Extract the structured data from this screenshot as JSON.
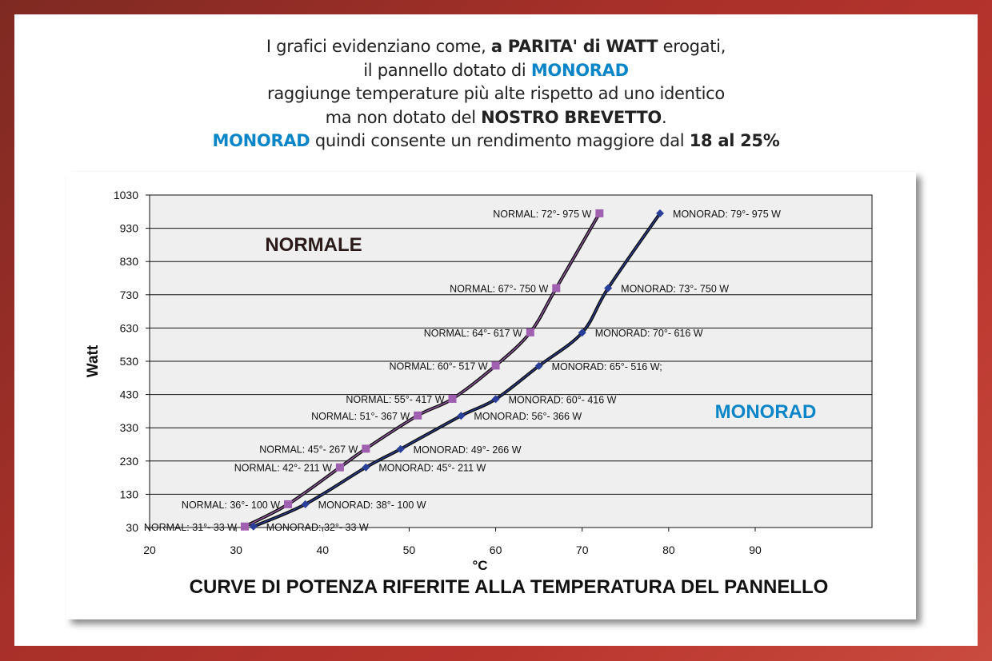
{
  "heading": {
    "line1_a": "I grafici evidenziano come, ",
    "line1_b": "a PARITA' di WATT",
    "line1_c": " erogati,",
    "line2_a": "il pannello dotato di ",
    "line2_b": "MONORAD",
    "line3": "raggiunge temperature più alte rispetto ad uno identico",
    "line4_a": "ma non dotato del ",
    "line4_b": "NOSTRO BREVETTO",
    "line4_c": ".",
    "line5_a": "MONORAD",
    "line5_b": " quindi consente un rendimento maggiore dal ",
    "line5_c": "18 al 25%"
  },
  "chart_data": {
    "type": "line",
    "title": "CURVE DI POTENZA RIFERITE ALLA TEMPERATURA DEL PANNELLO",
    "xlabel": "°C",
    "ylabel": "Watt",
    "xlim": [
      20,
      103.5
    ],
    "ylim": [
      30,
      1030
    ],
    "xticks": [
      20,
      30,
      40,
      50,
      60,
      70,
      80,
      90
    ],
    "yticks": [
      30,
      130,
      230,
      330,
      430,
      530,
      630,
      730,
      830,
      930,
      1030
    ],
    "grid": "horizontal",
    "annotations": {
      "normale": "NORMALE",
      "monorad": "MONORAD"
    },
    "series": [
      {
        "name": "NORMAL",
        "color": "#a060b0",
        "marker": "square",
        "points": [
          {
            "x": 31,
            "y": 33,
            "label": "NORMAL: 31°- 33 W"
          },
          {
            "x": 36,
            "y": 100,
            "label": "NORMAL: 36°- 100 W"
          },
          {
            "x": 42,
            "y": 211,
            "label": "NORMAL: 42°- 211 W"
          },
          {
            "x": 45,
            "y": 267,
            "label": "NORMAL: 45°- 267 W"
          },
          {
            "x": 51,
            "y": 367,
            "label": "NORMAL: 51°- 367 W"
          },
          {
            "x": 55,
            "y": 417,
            "label": "NORMAL: 55°- 417 W"
          },
          {
            "x": 60,
            "y": 517,
            "label": "NORMAL: 60°- 517 W"
          },
          {
            "x": 64,
            "y": 617,
            "label": "NORMAL: 64°- 617 W"
          },
          {
            "x": 67,
            "y": 750,
            "label": "NORMAL: 67°- 750 W"
          },
          {
            "x": 72,
            "y": 975,
            "label": "NORMAL: 72°- 975 W"
          }
        ]
      },
      {
        "name": "MONORAD",
        "color": "#2a3f9a",
        "marker": "diamond",
        "points": [
          {
            "x": 32,
            "y": 33,
            "label": "MONORAD: 32°- 33 W"
          },
          {
            "x": 38,
            "y": 100,
            "label": "MONORAD: 38°- 100 W"
          },
          {
            "x": 45,
            "y": 211,
            "label": "MONORAD: 45°- 211 W"
          },
          {
            "x": 49,
            "y": 266,
            "label": "MONORAD: 49°- 266 W"
          },
          {
            "x": 56,
            "y": 366,
            "label": "MONORAD: 56°- 366 W"
          },
          {
            "x": 60,
            "y": 416,
            "label": "MONORAD: 60°- 416 W"
          },
          {
            "x": 65,
            "y": 516,
            "label": "MONORAD: 65°- 516 W;"
          },
          {
            "x": 70,
            "y": 616,
            "label": "MONORAD: 70°- 616 W"
          },
          {
            "x": 73,
            "y": 750,
            "label": "MONORAD: 73°- 750 W"
          },
          {
            "x": 79,
            "y": 975,
            "label": "MONORAD: 79°- 975 W"
          }
        ]
      }
    ]
  }
}
